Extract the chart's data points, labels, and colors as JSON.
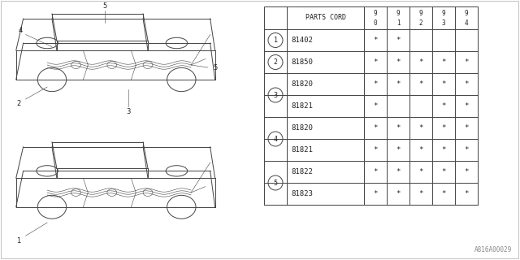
{
  "watermark": "A816A00029",
  "table": {
    "header_col": "PARTS CORD",
    "columns": [
      "9\n0",
      "9\n1",
      "9\n2",
      "9\n3",
      "9\n4"
    ],
    "groups": [
      {
        "num": "1",
        "rows": [
          {
            "part": "81402",
            "marks": [
              true,
              true,
              false,
              false,
              false
            ]
          }
        ]
      },
      {
        "num": "2",
        "rows": [
          {
            "part": "81850",
            "marks": [
              true,
              true,
              true,
              true,
              true
            ]
          }
        ]
      },
      {
        "num": "3",
        "rows": [
          {
            "part": "81820",
            "marks": [
              true,
              true,
              true,
              true,
              true
            ]
          },
          {
            "part": "81821",
            "marks": [
              true,
              false,
              false,
              true,
              true
            ]
          }
        ]
      },
      {
        "num": "4",
        "rows": [
          {
            "part": "81820",
            "marks": [
              true,
              true,
              true,
              true,
              true
            ]
          },
          {
            "part": "81821",
            "marks": [
              true,
              true,
              true,
              true,
              true
            ]
          }
        ]
      },
      {
        "num": "5",
        "rows": [
          {
            "part": "81822",
            "marks": [
              true,
              true,
              true,
              true,
              true
            ]
          },
          {
            "part": "81823",
            "marks": [
              true,
              true,
              true,
              true,
              true
            ]
          }
        ]
      }
    ]
  },
  "bg_color": "#ffffff",
  "line_color": "#444444",
  "text_color": "#222222"
}
